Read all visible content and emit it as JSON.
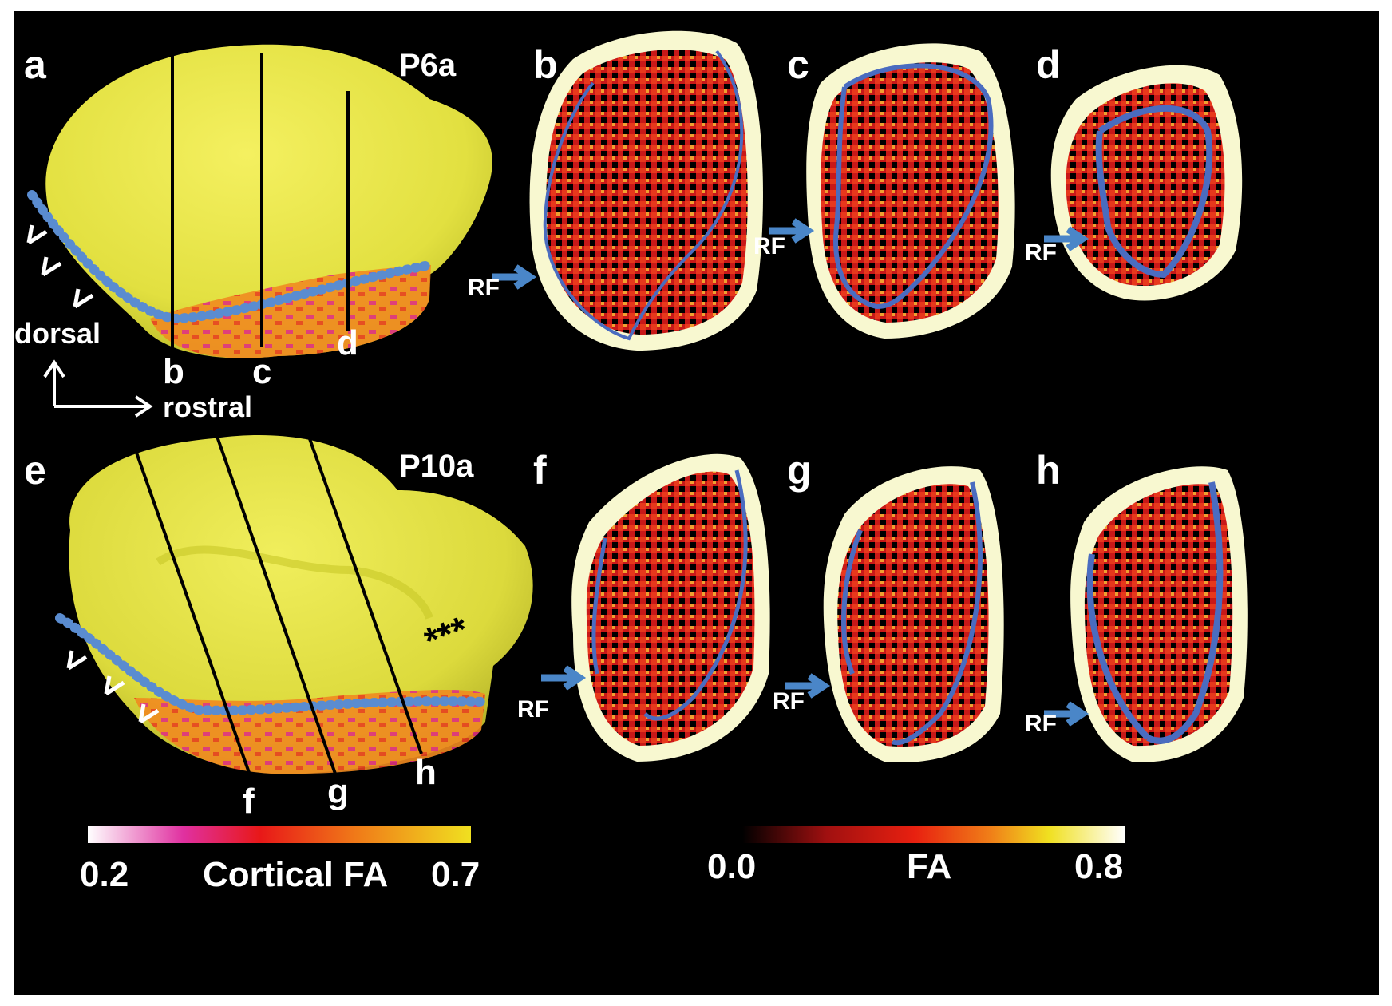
{
  "panels": {
    "a": "a",
    "b": "b",
    "c": "c",
    "d": "d",
    "e": "e",
    "f": "f",
    "g": "g",
    "h": "h"
  },
  "stages": {
    "top": "P6a",
    "bottom": "P10a"
  },
  "cut_labels_top": [
    "b",
    "c",
    "d"
  ],
  "cut_labels_bottom": [
    "f",
    "g",
    "h"
  ],
  "rf_label": "RF",
  "orientation": {
    "vertical": "dorsal",
    "horizontal": "rostral"
  },
  "markers": {
    "asterisks": "***"
  },
  "colorbars": {
    "cortical": {
      "min": "0.2",
      "label": "Cortical FA",
      "max": "0.7",
      "colors": [
        "#ffffff",
        "#e030a0",
        "#e81818",
        "#f07a18",
        "#f0e020"
      ]
    },
    "fa": {
      "min": "0.0",
      "label": "FA",
      "max": "0.8",
      "colors": [
        "#000000",
        "#a01010",
        "#e82010",
        "#f08018",
        "#f0e020",
        "#ffffff"
      ]
    }
  },
  "colors": {
    "background": "#000000",
    "surface": "#e8e84a",
    "rhinal_fissure": "#5a8cd0",
    "arrow": "#4a86c8"
  }
}
